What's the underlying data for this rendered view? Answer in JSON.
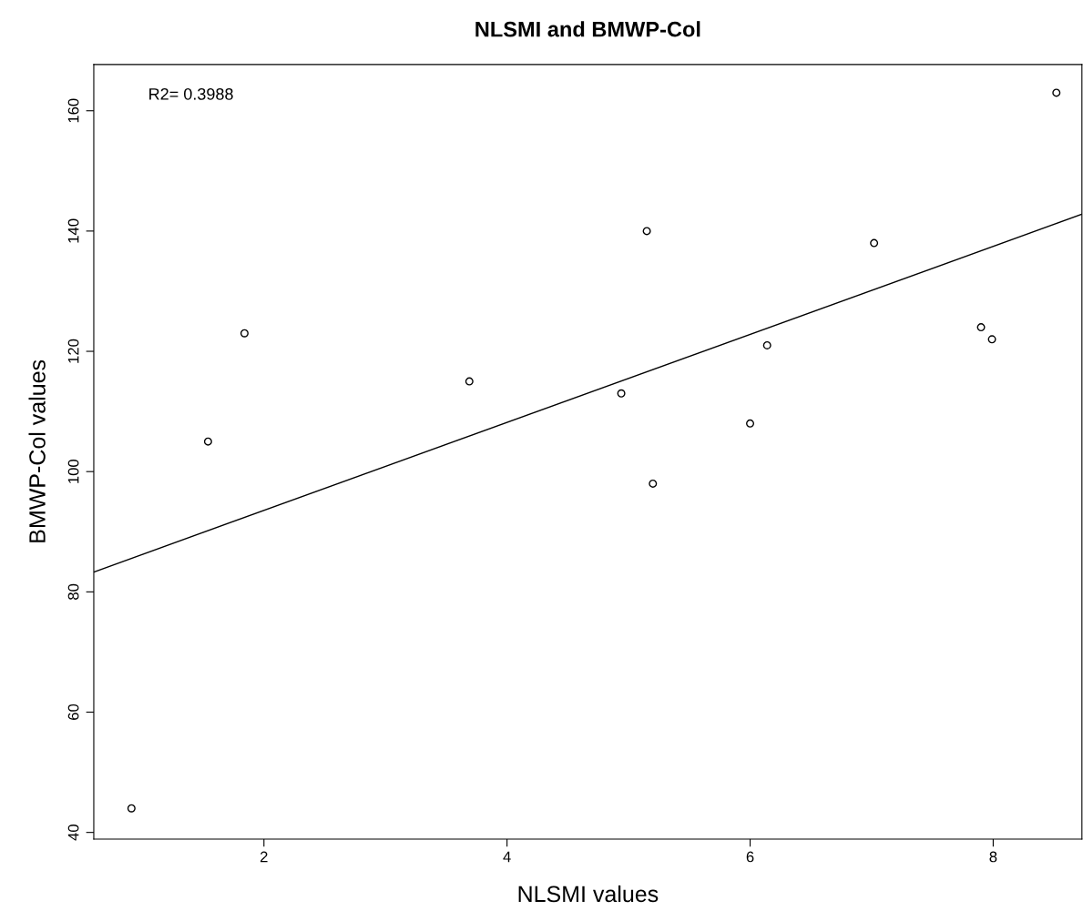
{
  "chart_data": {
    "type": "scatter",
    "title": "NLSMI and BMWP-Col",
    "xlabel": "NLSMI values",
    "ylabel": "BMWP-Col values",
    "annotations": [
      "R2= 0.3988"
    ],
    "series": [
      {
        "type": "scatter",
        "color": "#000000",
        "marker": "circle",
        "x": [
          0.91,
          1.54,
          1.84,
          3.69,
          4.94,
          5.15,
          5.2,
          6.0,
          6.14,
          7.02,
          7.9,
          7.99,
          8.52
        ],
        "values": [
          44,
          105,
          123,
          115,
          113,
          140,
          98,
          108,
          121,
          138,
          124,
          122,
          163
        ]
      },
      {
        "type": "line",
        "color": "#000000",
        "x": [
          0.6,
          8.73
        ],
        "values": [
          83.3,
          142.8
        ]
      }
    ],
    "xlim": [
      0.6,
      8.73
    ],
    "ylim": [
      38.9,
      167.7
    ],
    "xticks": [
      2,
      4,
      6,
      8
    ],
    "yticks": [
      40,
      60,
      80,
      100,
      120,
      140,
      160
    ],
    "grid": false,
    "legend": false
  }
}
